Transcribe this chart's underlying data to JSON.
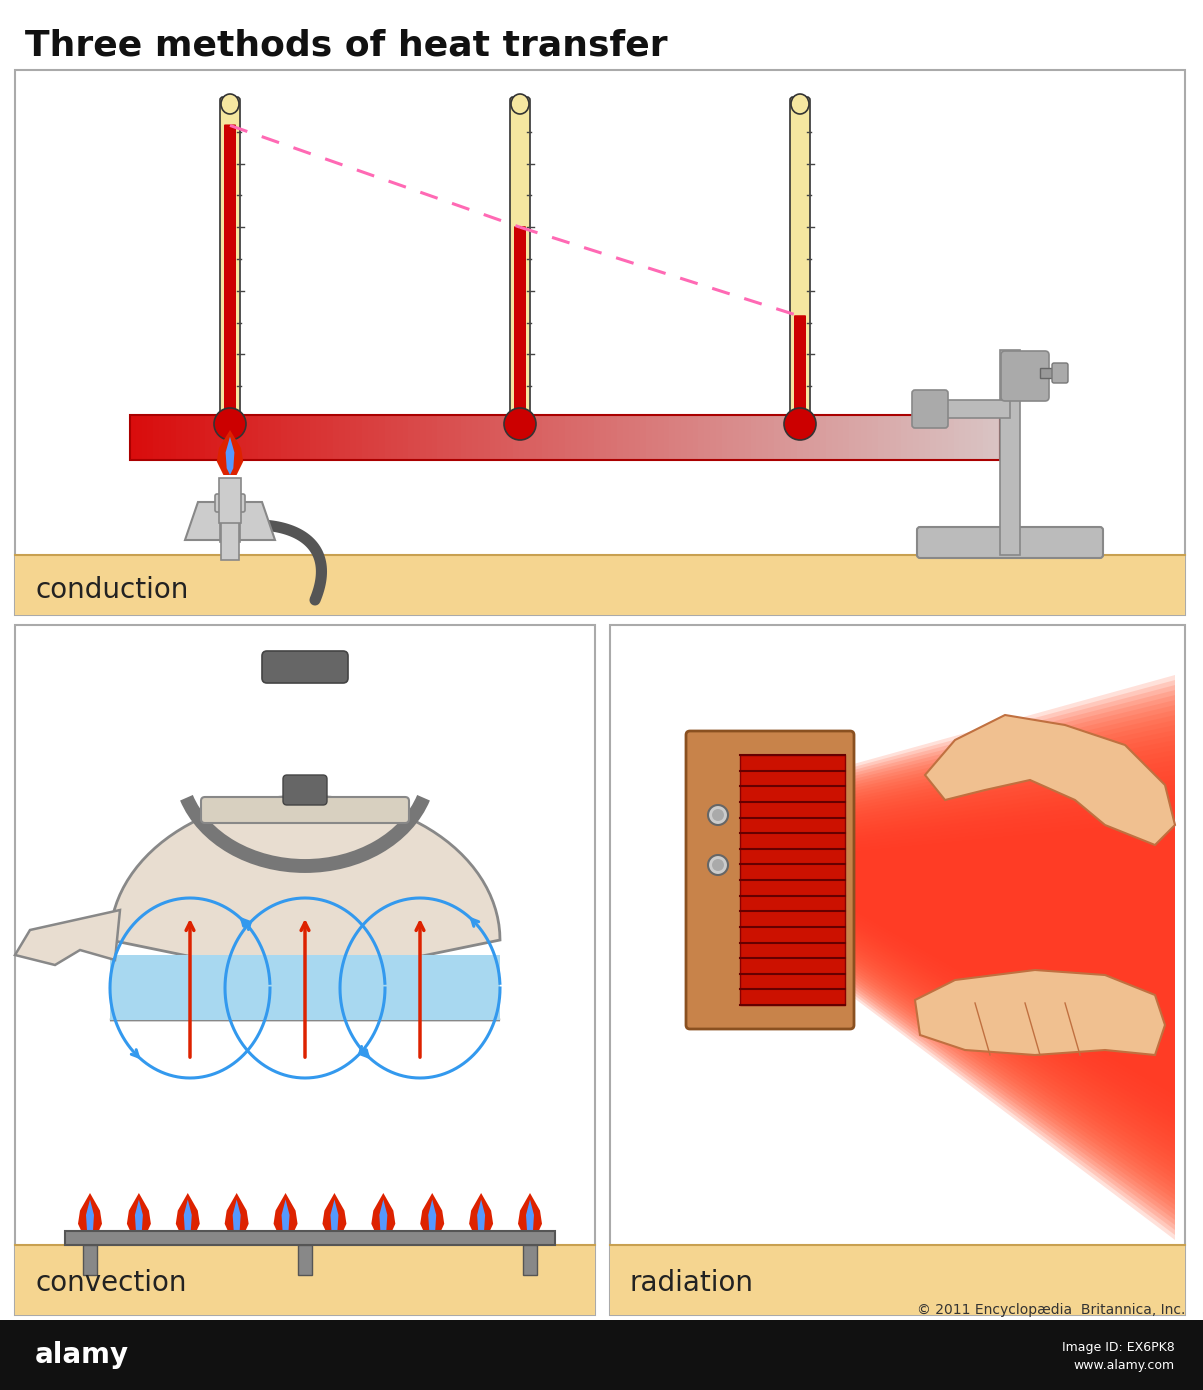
{
  "title": "Three methods of heat transfer",
  "title_fontsize": 26,
  "title_fontweight": "bold",
  "bg_color": "#ffffff",
  "copyright": "© 2011 Encyclopædia  Britannica, Inc.",
  "labels": {
    "conduction": "conduction",
    "convection": "convection",
    "radiation": "radiation"
  },
  "label_fontsize": 20,
  "thermometer_body_color": "#f5e6a0",
  "thermometer_mercury_color": "#cc0000",
  "ground_color": "#f5d590",
  "dashed_line_color": "#ff69b4",
  "flame_red": "#dd2200",
  "flame_blue": "#5599ff",
  "arrow_blue": "#3399ee",
  "arrow_red": "#dd2200",
  "heater_box_color": "#c8834a",
  "heater_grill_color": "#cc2200",
  "hand_color": "#f0c090",
  "hand_outline": "#c07040",
  "kettle_color": "#e8ddd0",
  "kettle_outline": "#888888",
  "water_color": "#a8d8f0",
  "stand_color": "#bbbbbb",
  "bunsen_color": "#cccccc"
}
